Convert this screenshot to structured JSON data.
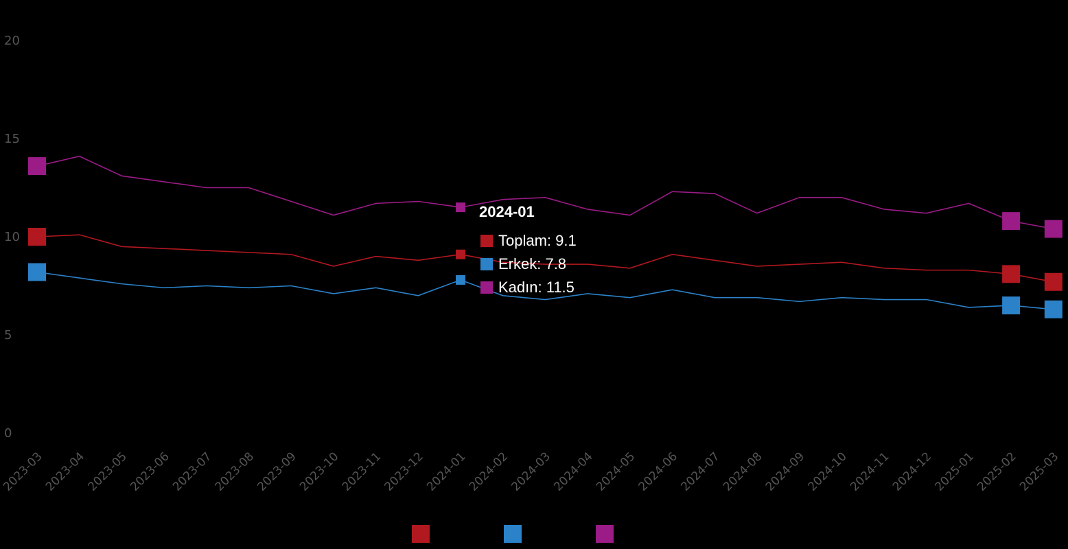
{
  "chart_data": {
    "type": "line",
    "categories": [
      "2023-03",
      "2023-04",
      "2023-05",
      "2023-06",
      "2023-07",
      "2023-08",
      "2023-09",
      "2023-10",
      "2023-11",
      "2023-12",
      "2024-01",
      "2024-02",
      "2024-03",
      "2024-04",
      "2024-05",
      "2024-06",
      "2024-07",
      "2024-08",
      "2024-09",
      "2024-10",
      "2024-11",
      "2024-12",
      "2025-01",
      "2025-02",
      "2025-03"
    ],
    "series": [
      {
        "name": "Toplam",
        "color": "#b2181f",
        "values": [
          10.0,
          10.1,
          9.5,
          9.4,
          9.3,
          9.2,
          9.1,
          8.5,
          9.0,
          8.8,
          9.1,
          8.7,
          8.6,
          8.6,
          8.4,
          9.1,
          8.8,
          8.5,
          8.6,
          8.7,
          8.4,
          8.3,
          8.3,
          8.1,
          7.7
        ]
      },
      {
        "name": "Erkek",
        "color": "#2b82c9",
        "values": [
          8.2,
          7.9,
          7.6,
          7.4,
          7.5,
          7.4,
          7.5,
          7.1,
          7.4,
          7.0,
          7.8,
          7.0,
          6.8,
          7.1,
          6.9,
          7.3,
          6.9,
          6.9,
          6.7,
          6.9,
          6.8,
          6.8,
          6.4,
          6.5,
          6.3
        ]
      },
      {
        "name": "Kadın",
        "color": "#9b1b87",
        "values": [
          13.6,
          14.1,
          13.1,
          12.8,
          12.5,
          12.5,
          11.8,
          11.1,
          11.7,
          11.8,
          11.5,
          11.9,
          12.0,
          11.4,
          11.1,
          12.3,
          12.2,
          11.2,
          12.0,
          12.0,
          11.4,
          11.2,
          11.7,
          10.8,
          10.4
        ]
      }
    ],
    "ylim": [
      0,
      20
    ],
    "yticks": [
      0,
      5,
      10,
      15,
      20
    ],
    "grid": false,
    "legend_position": "bottom-center",
    "title": "",
    "xlabel": "",
    "ylabel": ""
  },
  "tooltip": {
    "title": "2024-01",
    "rows": [
      {
        "label": "Toplam: 9.1",
        "color": "#b2181f"
      },
      {
        "label": "Erkek: 7.8",
        "color": "#2b82c9"
      },
      {
        "label": "Kadın: 11.5",
        "color": "#9b1b87"
      }
    ]
  }
}
